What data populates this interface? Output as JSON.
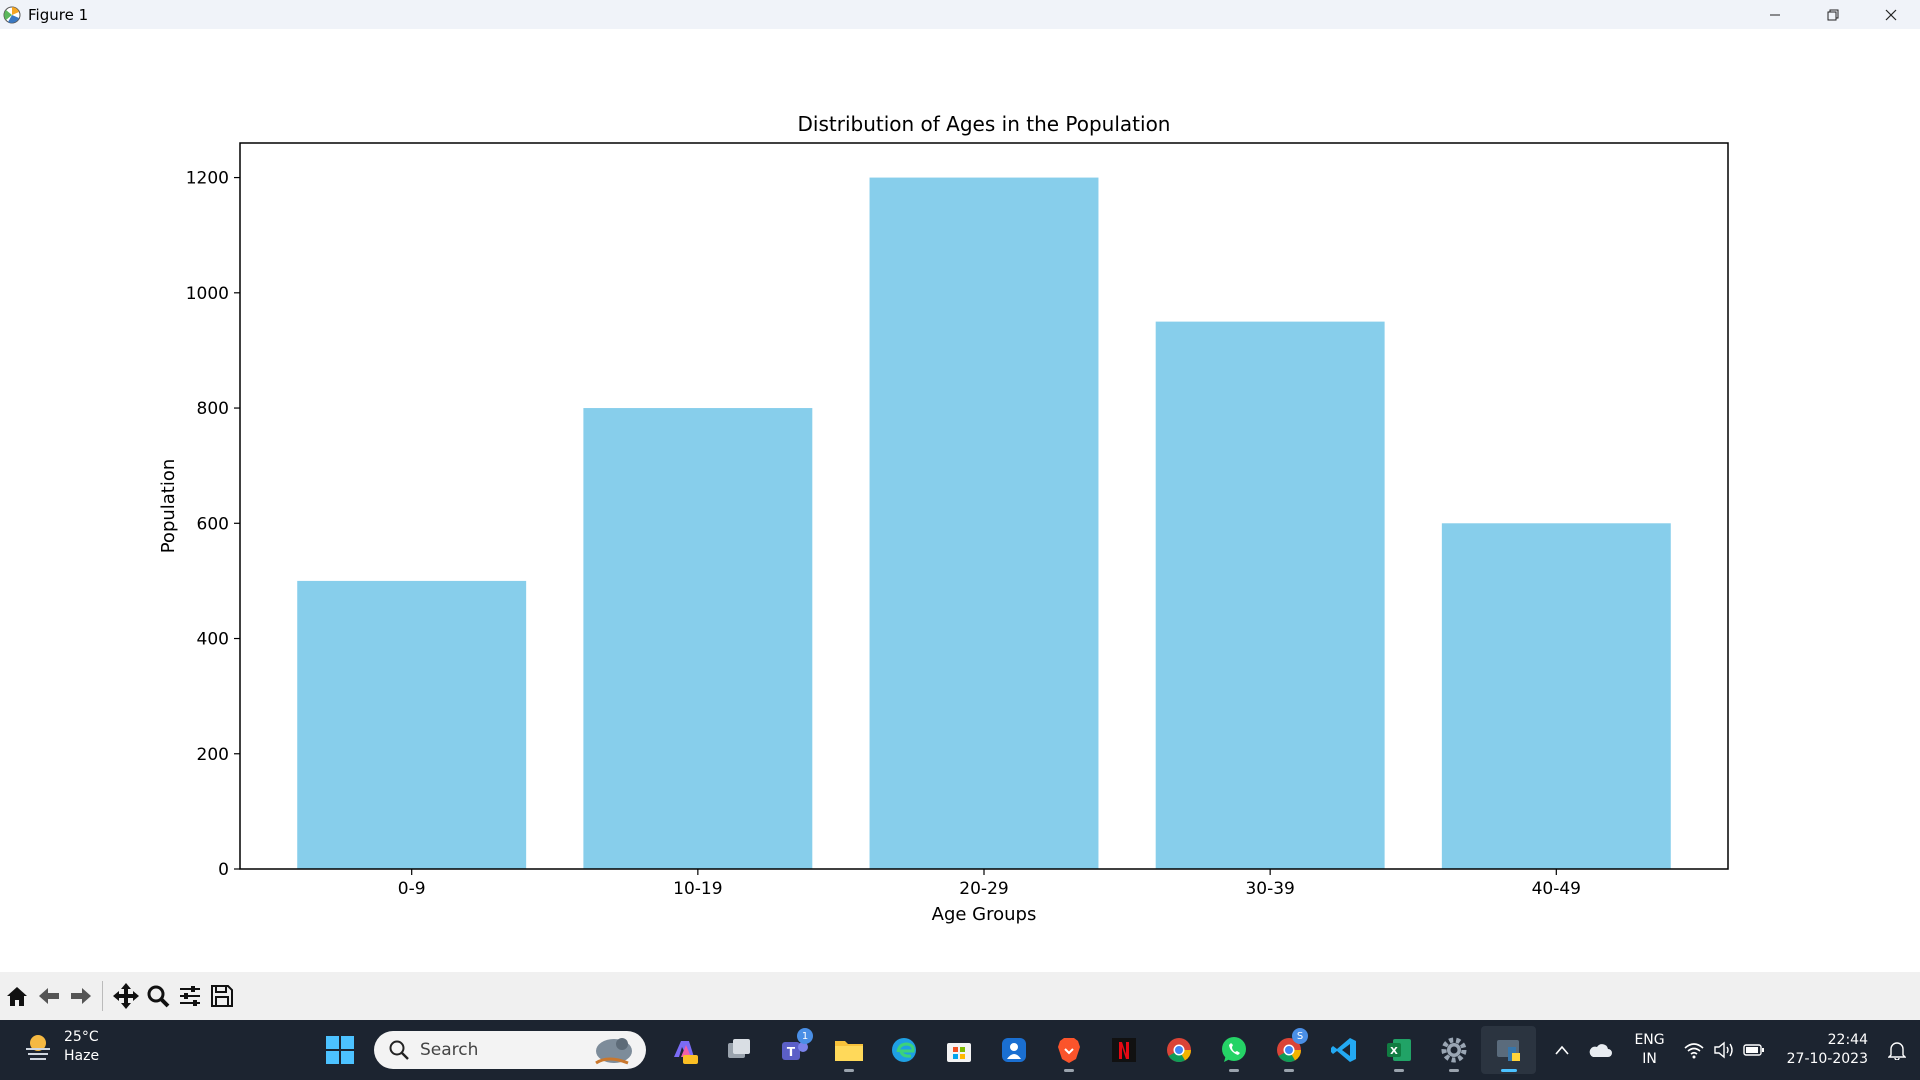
{
  "window": {
    "title": "Figure 1"
  },
  "colors": {
    "bar": "#87ceeb",
    "taskbar": "#1c2430",
    "toolbar": "#f0f0f0"
  },
  "chart_data": {
    "type": "bar",
    "title": "Distribution of Ages in the Population",
    "xlabel": "Age Groups",
    "ylabel": "Population",
    "categories": [
      "0-9",
      "10-19",
      "20-29",
      "30-39",
      "40-49"
    ],
    "values": [
      500,
      800,
      1200,
      950,
      600
    ],
    "ylim": [
      0,
      1260
    ],
    "yticks": [
      0,
      200,
      400,
      600,
      800,
      1000,
      1200
    ],
    "grid": false,
    "bar_color": "#87ceeb"
  },
  "toolbar": {
    "buttons": [
      "home-icon",
      "back-icon",
      "forward-icon",
      "pan-icon",
      "zoom-icon",
      "configure-subplots-icon",
      "save-icon"
    ]
  },
  "taskbar": {
    "weather": {
      "temp": "25°C",
      "condition": "Haze"
    },
    "search": {
      "placeholder": "Search"
    },
    "pinned_badge": "1",
    "chrome_badge": "S",
    "tray": {
      "lang_line1": "ENG",
      "lang_line2": "IN",
      "time": "22:44",
      "date": "27-10-2023"
    }
  }
}
